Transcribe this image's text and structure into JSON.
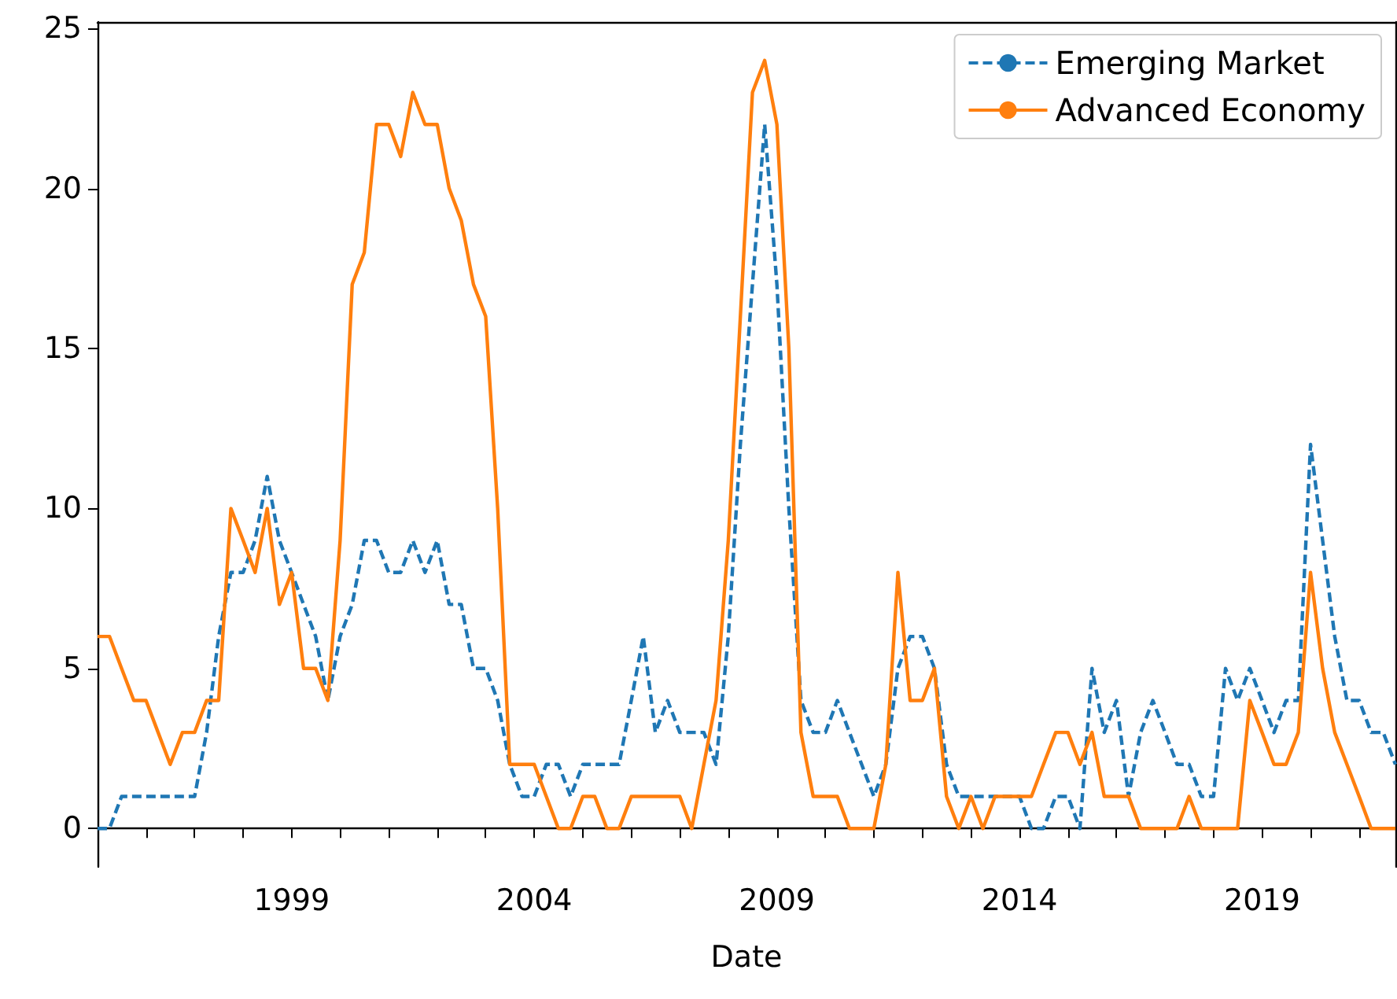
{
  "chart_data": {
    "type": "line",
    "xlabel": "Date",
    "x": [
      "1995-01",
      "1995-04",
      "1995-07",
      "1995-10",
      "1996-01",
      "1996-04",
      "1996-07",
      "1996-10",
      "1997-01",
      "1997-04",
      "1997-07",
      "1997-10",
      "1998-01",
      "1998-04",
      "1998-07",
      "1998-10",
      "1999-01",
      "1999-04",
      "1999-07",
      "1999-10",
      "2000-01",
      "2000-04",
      "2000-07",
      "2000-10",
      "2001-01",
      "2001-04",
      "2001-07",
      "2001-10",
      "2002-01",
      "2002-04",
      "2002-07",
      "2002-10",
      "2003-01",
      "2003-04",
      "2003-07",
      "2003-10",
      "2004-01",
      "2004-04",
      "2004-07",
      "2004-10",
      "2005-01",
      "2005-04",
      "2005-07",
      "2005-10",
      "2006-01",
      "2006-04",
      "2006-07",
      "2006-10",
      "2007-01",
      "2007-04",
      "2007-07",
      "2007-10",
      "2008-01",
      "2008-04",
      "2008-07",
      "2008-10",
      "2009-01",
      "2009-04",
      "2009-07",
      "2009-10",
      "2010-01",
      "2010-04",
      "2010-07",
      "2010-10",
      "2011-01",
      "2011-04",
      "2011-07",
      "2011-10",
      "2012-01",
      "2012-04",
      "2012-07",
      "2012-10",
      "2013-01",
      "2013-04",
      "2013-07",
      "2013-10",
      "2014-01",
      "2014-04",
      "2014-07",
      "2014-10",
      "2015-01",
      "2015-04",
      "2015-07",
      "2015-10",
      "2016-01",
      "2016-04",
      "2016-07",
      "2016-10",
      "2017-01",
      "2017-04",
      "2017-07",
      "2017-10",
      "2018-01",
      "2018-04",
      "2018-07",
      "2018-10",
      "2019-01",
      "2019-04",
      "2019-07",
      "2019-10",
      "2020-01",
      "2020-04",
      "2020-07",
      "2020-10",
      "2021-01",
      "2021-04",
      "2021-07",
      "2021-10"
    ],
    "series": [
      {
        "name": "Emerging Market",
        "color": "#1f77b4",
        "line_style": "dashed",
        "values": [
          0,
          0,
          1,
          1,
          1,
          1,
          1,
          1,
          1,
          3,
          6,
          8,
          8,
          9,
          11,
          9,
          8,
          7,
          6,
          4,
          6,
          7,
          9,
          9,
          8,
          8,
          9,
          8,
          9,
          7,
          7,
          5,
          5,
          4,
          2,
          1,
          1,
          2,
          2,
          1,
          2,
          2,
          2,
          2,
          4,
          6,
          3,
          4,
          3,
          3,
          3,
          2,
          6,
          12,
          17,
          22,
          17,
          10,
          4,
          3,
          3,
          4,
          3,
          2,
          1,
          2,
          5,
          6,
          6,
          5,
          2,
          1,
          1,
          1,
          1,
          1,
          1,
          0,
          0,
          1,
          1,
          0,
          5,
          3,
          4,
          1,
          3,
          4,
          3,
          2,
          2,
          1,
          1,
          5,
          4,
          5,
          4,
          3,
          4,
          4,
          12,
          9,
          6,
          4,
          4,
          3,
          3,
          2
        ]
      },
      {
        "name": "Advanced Economy",
        "color": "#ff7f0e",
        "line_style": "solid",
        "values": [
          6,
          6,
          5,
          4,
          4,
          3,
          2,
          3,
          3,
          4,
          4,
          10,
          9,
          8,
          10,
          7,
          8,
          5,
          5,
          4,
          9,
          17,
          18,
          22,
          22,
          21,
          23,
          22,
          22,
          20,
          19,
          17,
          16,
          10,
          2,
          2,
          2,
          1,
          0,
          0,
          1,
          1,
          0,
          0,
          1,
          1,
          1,
          1,
          1,
          0,
          2,
          4,
          9,
          16,
          23,
          24,
          22,
          15,
          3,
          1,
          1,
          1,
          0,
          0,
          0,
          2,
          8,
          4,
          4,
          5,
          1,
          0,
          1,
          0,
          1,
          1,
          1,
          1,
          2,
          3,
          3,
          2,
          3,
          1,
          1,
          1,
          0,
          0,
          0,
          0,
          1,
          0,
          0,
          0,
          0,
          4,
          3,
          2,
          2,
          3,
          8,
          5,
          3,
          2,
          1,
          0,
          0,
          0
        ]
      }
    ],
    "xlim": [
      "1995-01",
      "2021-10"
    ],
    "xticks": [
      {
        "value": "1996",
        "label": null
      },
      {
        "value": "1997",
        "label": null
      },
      {
        "value": "1998",
        "label": null
      },
      "1999",
      {
        "value": "2000",
        "label": null
      },
      {
        "value": "2001",
        "label": null
      },
      {
        "value": "2002",
        "label": null
      },
      {
        "value": "2003",
        "label": null
      },
      "2004",
      {
        "value": "2005",
        "label": null
      },
      {
        "value": "2006",
        "label": null
      },
      {
        "value": "2007",
        "label": null
      },
      {
        "value": "2008",
        "label": null
      },
      "2009",
      {
        "value": "2010",
        "label": null
      },
      {
        "value": "2011",
        "label": null
      },
      {
        "value": "2012",
        "label": null
      },
      {
        "value": "2013",
        "label": null
      },
      "2014",
      {
        "value": "2015",
        "label": null
      },
      {
        "value": "2016",
        "label": null
      },
      {
        "value": "2017",
        "label": null
      },
      {
        "value": "2018",
        "label": null
      },
      "2019",
      {
        "value": "2020",
        "label": null
      },
      {
        "value": "2021",
        "label": null
      }
    ],
    "ylim": [
      -1.2,
      25.2
    ],
    "yticks": [
      0,
      5,
      10,
      15,
      20,
      25
    ],
    "legend": "top right",
    "marker": "none",
    "grid": false
  }
}
